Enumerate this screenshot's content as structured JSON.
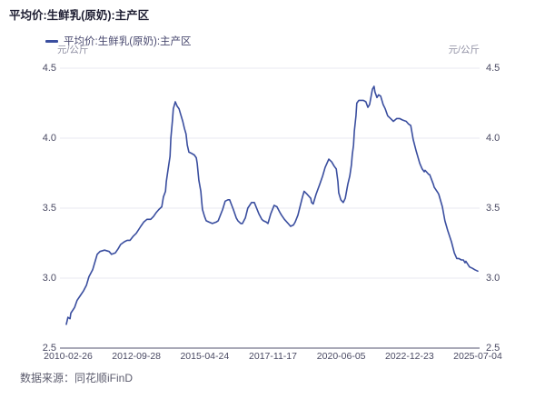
{
  "page": {
    "title": "平均价:生鲜乳(原奶):主产区",
    "source": "数据来源：同花顺iFinD"
  },
  "legend": {
    "label": "平均价:生鲜乳(原奶):主产区"
  },
  "axes": {
    "unit_left": "元/公斤",
    "unit_right": "元/公斤"
  },
  "colors": {
    "line": "#3A4E9F",
    "grid": "#e9e9f0",
    "axis": "#a9a9b7",
    "title_text": "#1f1f33",
    "legend_text": "#4a4a70",
    "tick_text": "#4a4a63",
    "unit_text": "#8f8fa3",
    "source_text": "#5c5c6e"
  },
  "chart_data": {
    "type": "line",
    "title": "平均价:生鲜乳(原奶):主产区",
    "series_name": "平均价:生鲜乳(原奶):主产区",
    "xlabel": "",
    "ylabel": "元/公斤",
    "grid": true,
    "legend_position": "top-left",
    "x_ticks": [
      "2010-02-26",
      "2012-09-28",
      "2015-04-24",
      "2017-11-17",
      "2020-06-05",
      "2022-12-23",
      "2025-07-04"
    ],
    "y_tick_labels": [
      "4.5",
      "4.0",
      "3.5",
      "3.0",
      "2.5"
    ],
    "ylim": [
      2.5,
      4.5
    ],
    "x_range": [
      "2010-02-26",
      "2025-07-04"
    ],
    "points": [
      [
        0.0,
        2.67
      ],
      [
        0.004,
        2.72
      ],
      [
        0.009,
        2.71
      ],
      [
        0.011,
        2.75
      ],
      [
        0.02,
        2.79
      ],
      [
        0.026,
        2.84
      ],
      [
        0.033,
        2.87
      ],
      [
        0.042,
        2.91
      ],
      [
        0.049,
        2.95
      ],
      [
        0.055,
        3.01
      ],
      [
        0.064,
        3.06
      ],
      [
        0.071,
        3.13
      ],
      [
        0.075,
        3.17
      ],
      [
        0.082,
        3.19
      ],
      [
        0.093,
        3.2
      ],
      [
        0.104,
        3.19
      ],
      [
        0.11,
        3.17
      ],
      [
        0.119,
        3.18
      ],
      [
        0.126,
        3.21
      ],
      [
        0.132,
        3.24
      ],
      [
        0.141,
        3.26
      ],
      [
        0.148,
        3.27
      ],
      [
        0.155,
        3.27
      ],
      [
        0.163,
        3.3
      ],
      [
        0.17,
        3.32
      ],
      [
        0.181,
        3.37
      ],
      [
        0.188,
        3.4
      ],
      [
        0.196,
        3.42
      ],
      [
        0.205,
        3.42
      ],
      [
        0.212,
        3.44
      ],
      [
        0.219,
        3.47
      ],
      [
        0.225,
        3.49
      ],
      [
        0.232,
        3.51
      ],
      [
        0.236,
        3.58
      ],
      [
        0.241,
        3.62
      ],
      [
        0.243,
        3.69
      ],
      [
        0.247,
        3.77
      ],
      [
        0.252,
        3.87
      ],
      [
        0.254,
        4.0
      ],
      [
        0.258,
        4.13
      ],
      [
        0.26,
        4.21
      ],
      [
        0.265,
        4.26
      ],
      [
        0.269,
        4.23
      ],
      [
        0.274,
        4.21
      ],
      [
        0.278,
        4.17
      ],
      [
        0.283,
        4.12
      ],
      [
        0.287,
        4.07
      ],
      [
        0.291,
        4.03
      ],
      [
        0.294,
        3.95
      ],
      [
        0.298,
        3.9
      ],
      [
        0.305,
        3.89
      ],
      [
        0.311,
        3.88
      ],
      [
        0.316,
        3.86
      ],
      [
        0.318,
        3.82
      ],
      [
        0.32,
        3.76
      ],
      [
        0.322,
        3.7
      ],
      [
        0.327,
        3.62
      ],
      [
        0.329,
        3.55
      ],
      [
        0.331,
        3.49
      ],
      [
        0.336,
        3.44
      ],
      [
        0.34,
        3.41
      ],
      [
        0.347,
        3.4
      ],
      [
        0.355,
        3.39
      ],
      [
        0.364,
        3.4
      ],
      [
        0.369,
        3.41
      ],
      [
        0.38,
        3.49
      ],
      [
        0.386,
        3.55
      ],
      [
        0.393,
        3.56
      ],
      [
        0.397,
        3.56
      ],
      [
        0.406,
        3.49
      ],
      [
        0.413,
        3.43
      ],
      [
        0.417,
        3.41
      ],
      [
        0.424,
        3.39
      ],
      [
        0.428,
        3.39
      ],
      [
        0.435,
        3.43
      ],
      [
        0.441,
        3.5
      ],
      [
        0.45,
        3.54
      ],
      [
        0.457,
        3.54
      ],
      [
        0.468,
        3.46
      ],
      [
        0.475,
        3.42
      ],
      [
        0.479,
        3.41
      ],
      [
        0.486,
        3.4
      ],
      [
        0.49,
        3.39
      ],
      [
        0.497,
        3.46
      ],
      [
        0.505,
        3.52
      ],
      [
        0.512,
        3.51
      ],
      [
        0.519,
        3.47
      ],
      [
        0.523,
        3.45
      ],
      [
        0.53,
        3.42
      ],
      [
        0.539,
        3.39
      ],
      [
        0.545,
        3.37
      ],
      [
        0.552,
        3.38
      ],
      [
        0.556,
        3.4
      ],
      [
        0.563,
        3.45
      ],
      [
        0.567,
        3.5
      ],
      [
        0.574,
        3.58
      ],
      [
        0.578,
        3.62
      ],
      [
        0.585,
        3.6
      ],
      [
        0.594,
        3.57
      ],
      [
        0.596,
        3.54
      ],
      [
        0.6,
        3.53
      ],
      [
        0.607,
        3.6
      ],
      [
        0.616,
        3.67
      ],
      [
        0.623,
        3.73
      ],
      [
        0.629,
        3.79
      ],
      [
        0.638,
        3.85
      ],
      [
        0.645,
        3.83
      ],
      [
        0.651,
        3.8
      ],
      [
        0.656,
        3.78
      ],
      [
        0.66,
        3.69
      ],
      [
        0.662,
        3.61
      ],
      [
        0.667,
        3.56
      ],
      [
        0.673,
        3.54
      ],
      [
        0.678,
        3.57
      ],
      [
        0.684,
        3.67
      ],
      [
        0.689,
        3.73
      ],
      [
        0.693,
        3.81
      ],
      [
        0.695,
        3.88
      ],
      [
        0.698,
        3.95
      ],
      [
        0.7,
        4.05
      ],
      [
        0.704,
        4.16
      ],
      [
        0.706,
        4.25
      ],
      [
        0.711,
        4.27
      ],
      [
        0.717,
        4.27
      ],
      [
        0.722,
        4.27
      ],
      [
        0.728,
        4.26
      ],
      [
        0.733,
        4.22
      ],
      [
        0.737,
        4.24
      ],
      [
        0.744,
        4.35
      ],
      [
        0.748,
        4.37
      ],
      [
        0.75,
        4.33
      ],
      [
        0.755,
        4.29
      ],
      [
        0.759,
        4.31
      ],
      [
        0.764,
        4.3
      ],
      [
        0.77,
        4.24
      ],
      [
        0.775,
        4.21
      ],
      [
        0.781,
        4.16
      ],
      [
        0.788,
        4.14
      ],
      [
        0.795,
        4.12
      ],
      [
        0.803,
        4.14
      ],
      [
        0.81,
        4.14
      ],
      [
        0.817,
        4.13
      ],
      [
        0.826,
        4.12
      ],
      [
        0.832,
        4.1
      ],
      [
        0.837,
        4.09
      ],
      [
        0.843,
        3.99
      ],
      [
        0.85,
        3.91
      ],
      [
        0.859,
        3.82
      ],
      [
        0.865,
        3.78
      ],
      [
        0.87,
        3.76
      ],
      [
        0.872,
        3.77
      ],
      [
        0.881,
        3.74
      ],
      [
        0.883,
        3.74
      ],
      [
        0.892,
        3.67
      ],
      [
        0.894,
        3.65
      ],
      [
        0.903,
        3.61
      ],
      [
        0.905,
        3.6
      ],
      [
        0.914,
        3.51
      ],
      [
        0.92,
        3.41
      ],
      [
        0.927,
        3.34
      ],
      [
        0.936,
        3.26
      ],
      [
        0.943,
        3.18
      ],
      [
        0.949,
        3.14
      ],
      [
        0.954,
        3.14
      ],
      [
        0.96,
        3.13
      ],
      [
        0.965,
        3.13
      ],
      [
        0.969,
        3.11
      ],
      [
        0.971,
        3.12
      ],
      [
        0.98,
        3.08
      ],
      [
        0.987,
        3.07
      ],
      [
        0.993,
        3.06
      ],
      [
        1.0,
        3.05
      ]
    ]
  }
}
